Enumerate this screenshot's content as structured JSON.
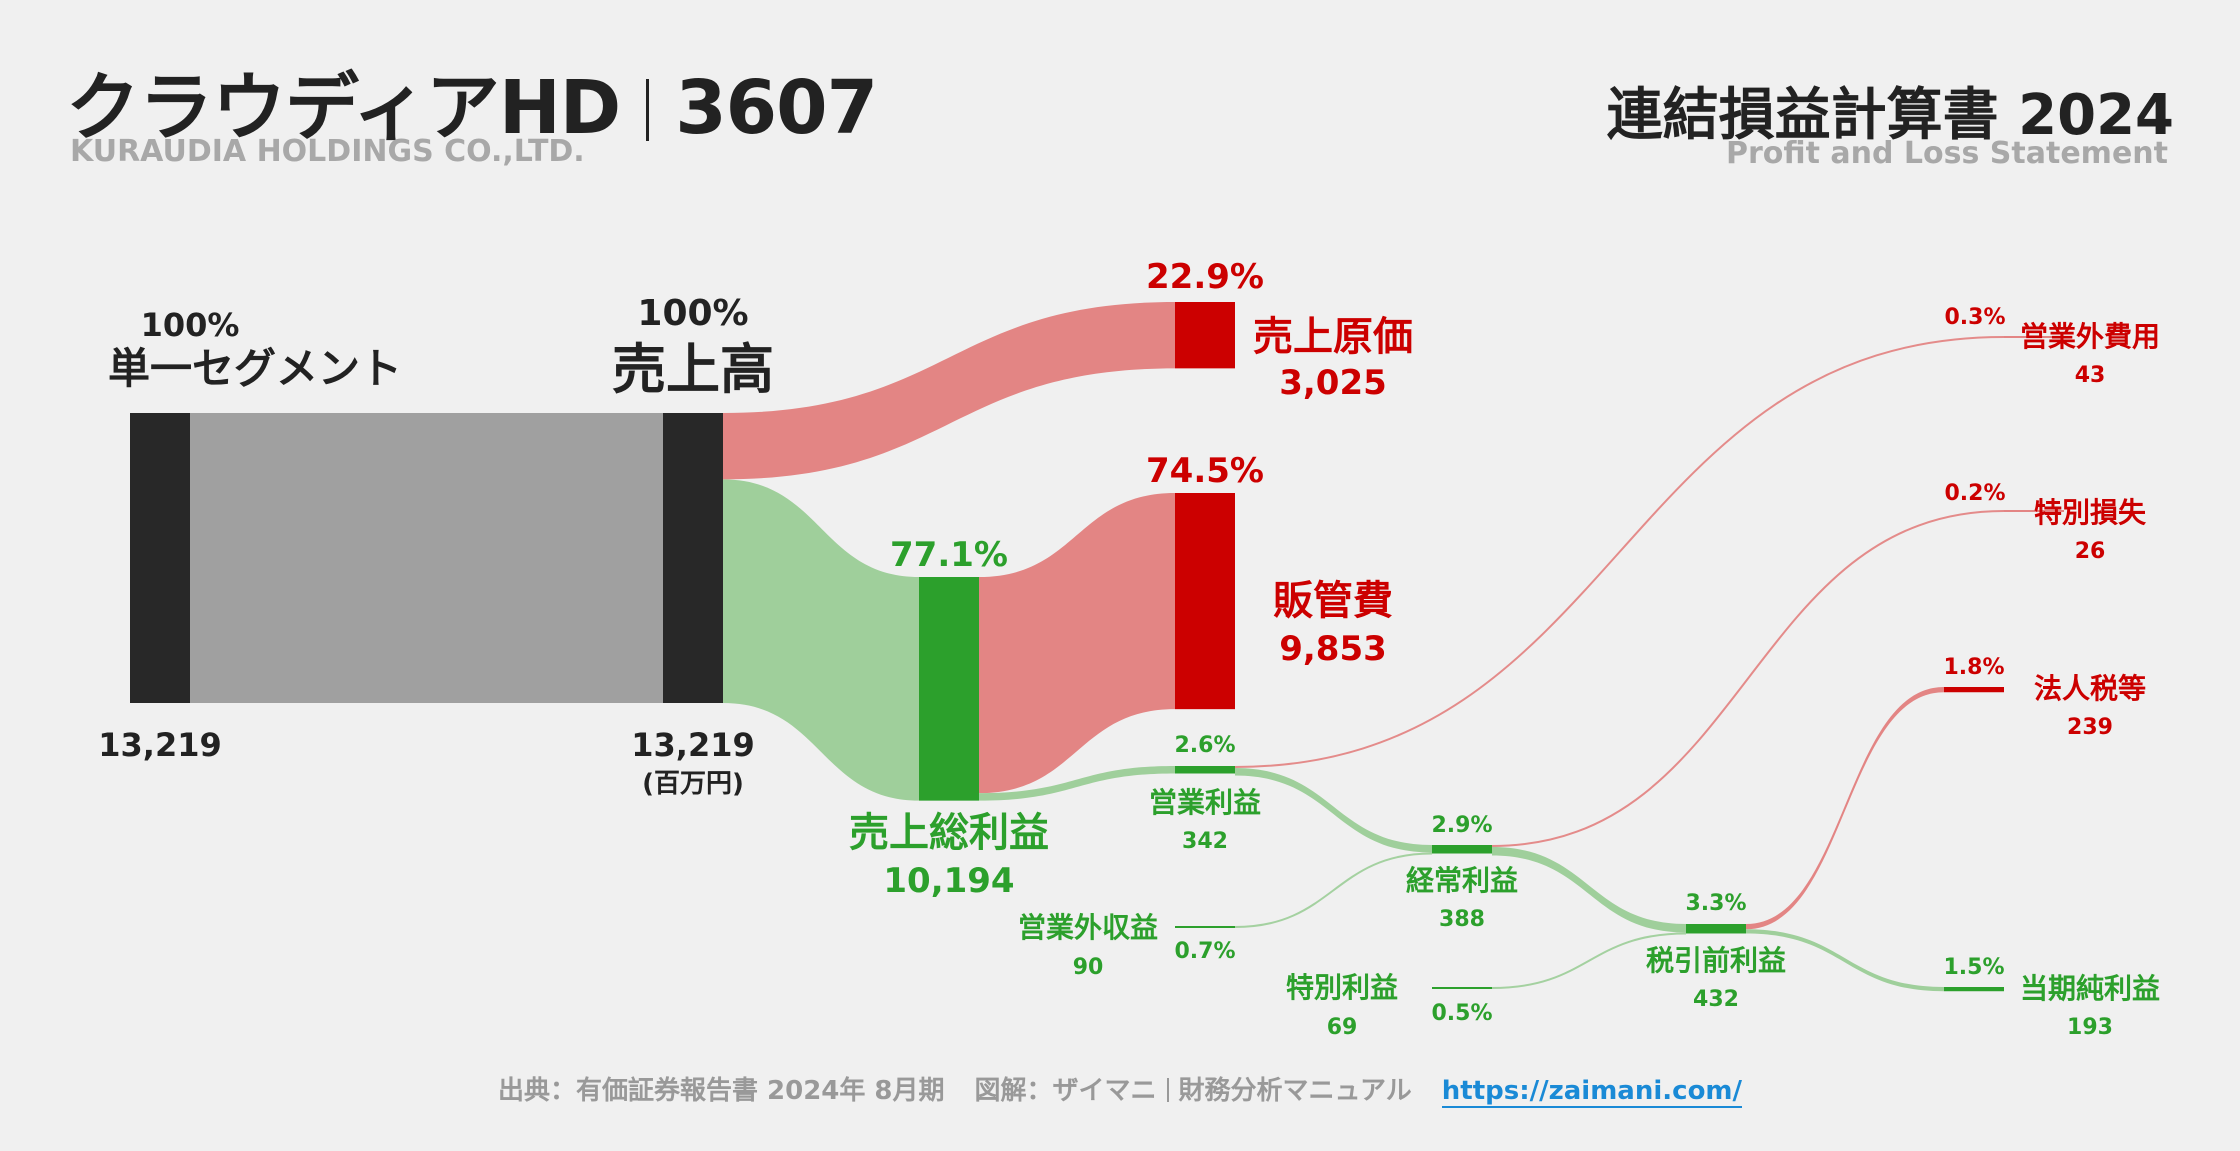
{
  "header": {
    "company": "クラウディアHD",
    "code": "3607",
    "company_en": "KURAUDIA HOLDINGS CO.,LTD.",
    "statement": "連結損益計算書 2024",
    "statement_en": "Profit and Loss Statement"
  },
  "colors": {
    "profit": "#2ca02c",
    "profit_flow": "#9fcf9b",
    "cost": "#cc0000",
    "cost_flow": "#e38584",
    "dark": "#282828",
    "segment_flow": "#a0a0a0"
  },
  "chart_data": {
    "type": "sankey",
    "unit": "(百万円)",
    "nodes": [
      {
        "id": "segment",
        "label": "単一セグメント",
        "value": 13219,
        "value_label": "13,219",
        "pct": "100%",
        "kind": "neutral"
      },
      {
        "id": "revenue",
        "label": "売上高",
        "value": 13219,
        "value_label": "13,219",
        "pct": "100%",
        "kind": "neutral"
      },
      {
        "id": "cogs",
        "label": "売上原価",
        "value": 3025,
        "value_label": "3,025",
        "pct": "22.9%",
        "kind": "cost"
      },
      {
        "id": "gross",
        "label": "売上総利益",
        "value": 10194,
        "value_label": "10,194",
        "pct": "77.1%",
        "kind": "profit"
      },
      {
        "id": "sga",
        "label": "販管費",
        "value": 9853,
        "value_label": "9,853",
        "pct": "74.5%",
        "kind": "cost"
      },
      {
        "id": "op",
        "label": "営業利益",
        "value": 342,
        "value_label": "342",
        "pct": "2.6%",
        "kind": "profit"
      },
      {
        "id": "nonop_inc",
        "label": "営業外収益",
        "value": 90,
        "value_label": "90",
        "pct": "0.7%",
        "kind": "profit"
      },
      {
        "id": "nonop_exp",
        "label": "営業外費用",
        "value": 43,
        "value_label": "43",
        "pct": "0.3%",
        "kind": "cost"
      },
      {
        "id": "ordinary",
        "label": "経常利益",
        "value": 388,
        "value_label": "388",
        "pct": "2.9%",
        "kind": "profit"
      },
      {
        "id": "extra_gain",
        "label": "特別利益",
        "value": 69,
        "value_label": "69",
        "pct": "0.5%",
        "kind": "profit"
      },
      {
        "id": "extra_loss",
        "label": "特別損失",
        "value": 26,
        "value_label": "26",
        "pct": "0.2%",
        "kind": "cost"
      },
      {
        "id": "pretax",
        "label": "税引前利益",
        "value": 432,
        "value_label": "432",
        "pct": "3.3%",
        "kind": "profit"
      },
      {
        "id": "tax",
        "label": "法人税等",
        "value": 239,
        "value_label": "239",
        "pct": "1.8%",
        "kind": "cost"
      },
      {
        "id": "net",
        "label": "当期純利益",
        "value": 193,
        "value_label": "193",
        "pct": "1.5%",
        "kind": "profit"
      }
    ],
    "links": [
      {
        "source": "segment",
        "target": "revenue",
        "value": 13219
      },
      {
        "source": "revenue",
        "target": "cogs",
        "value": 3025
      },
      {
        "source": "revenue",
        "target": "gross",
        "value": 10194
      },
      {
        "source": "gross",
        "target": "sga",
        "value": 9853
      },
      {
        "source": "gross",
        "target": "op",
        "value": 342
      },
      {
        "source": "op",
        "target": "nonop_exp",
        "value": 43
      },
      {
        "source": "op",
        "target": "ordinary",
        "value": 342
      },
      {
        "source": "nonop_inc",
        "target": "ordinary",
        "value": 90
      },
      {
        "source": "ordinary",
        "target": "extra_loss",
        "value": 26
      },
      {
        "source": "ordinary",
        "target": "pretax",
        "value": 388
      },
      {
        "source": "extra_gain",
        "target": "pretax",
        "value": 69
      },
      {
        "source": "pretax",
        "target": "tax",
        "value": 239
      },
      {
        "source": "pretax",
        "target": "net",
        "value": 193
      }
    ]
  },
  "footer": {
    "source": "出典：有価証券報告書 2024年 8月期",
    "credit_a": "図解：ザイマニ",
    "credit_b": "財務分析マニュアル",
    "url": "https://zaimani.com/"
  }
}
